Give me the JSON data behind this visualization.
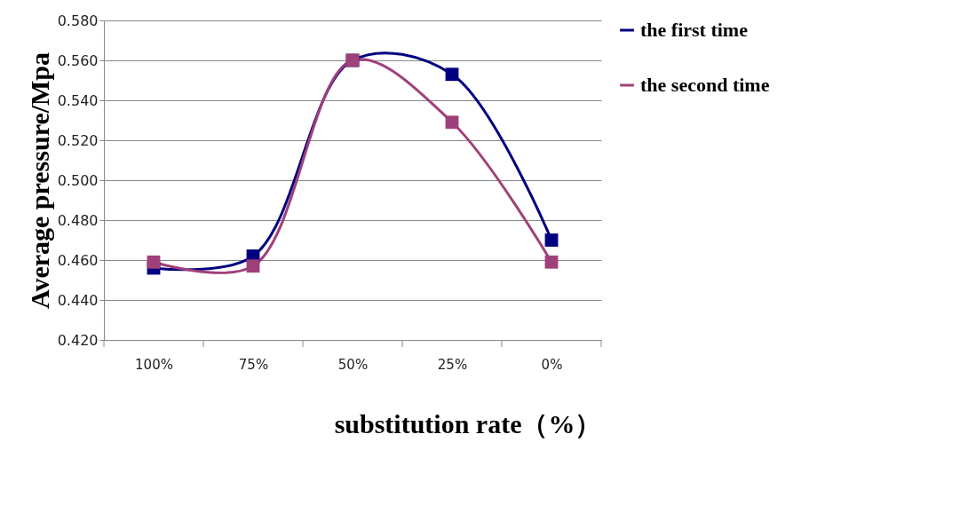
{
  "chart_data": {
    "type": "line",
    "xlabel": "substitution rate（%）",
    "ylabel": "Average pressure/Mpa",
    "categories": [
      "100%",
      "75%",
      "50%",
      "25%",
      "0%"
    ],
    "series": [
      {
        "name": "the first time",
        "color": "#000080",
        "values": [
          0.456,
          0.462,
          0.56,
          0.553,
          0.47
        ]
      },
      {
        "name": "the second time",
        "color": "#a0407a",
        "values": [
          0.459,
          0.457,
          0.56,
          0.529,
          0.459
        ]
      }
    ],
    "ylim": [
      0.42,
      0.58
    ],
    "yticks": [
      {
        "value": 0.42,
        "label": "0.420"
      },
      {
        "value": 0.44,
        "label": "0.440"
      },
      {
        "value": 0.46,
        "label": "0.460"
      },
      {
        "value": 0.48,
        "label": "0.480"
      },
      {
        "value": 0.5,
        "label": "0.500"
      },
      {
        "value": 0.52,
        "label": "0.520"
      },
      {
        "value": 0.54,
        "label": "0.540"
      },
      {
        "value": 0.56,
        "label": "0.560"
      },
      {
        "value": 0.58,
        "label": "0.580"
      }
    ],
    "grid": "y",
    "legend": "right",
    "marker": "square",
    "line_style": "solid"
  }
}
